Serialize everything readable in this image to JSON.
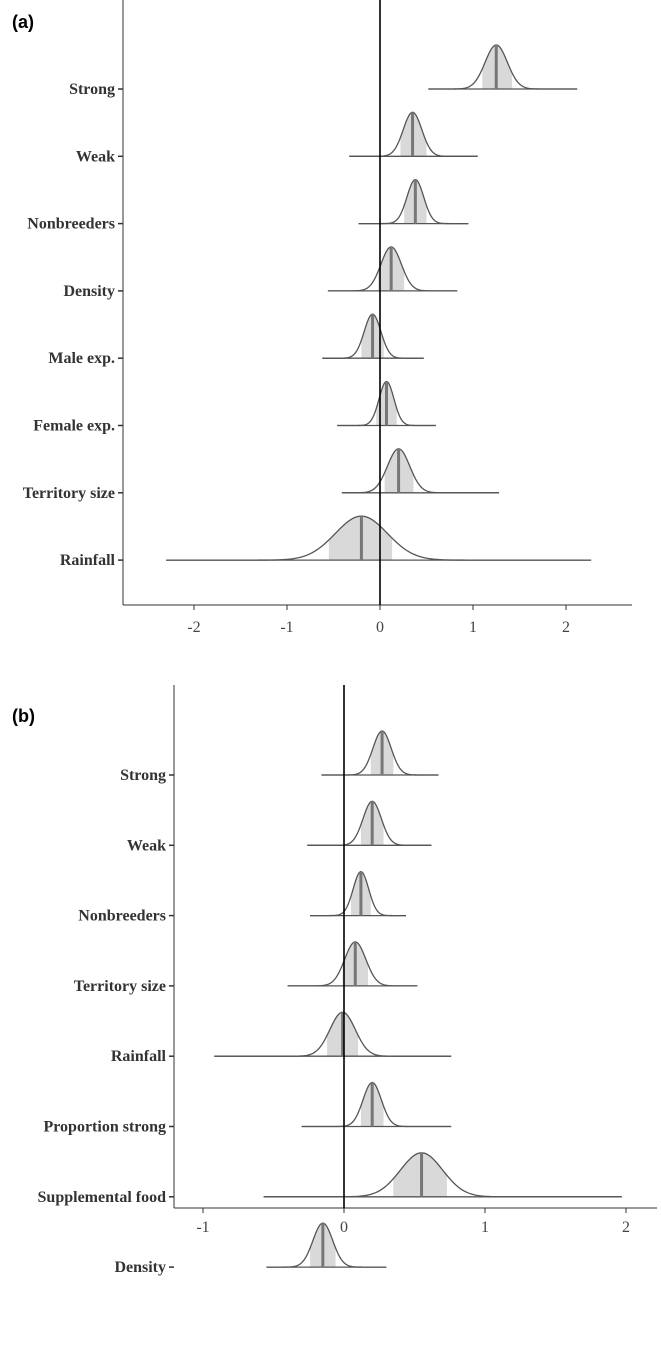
{
  "chart_data": [
    {
      "type": "ridge_interval",
      "panel_label": "(a)",
      "xlabel": "",
      "ylabel": "",
      "xlim": [
        -2.8,
        2.7
      ],
      "xticks": [
        -2,
        -1,
        0,
        1,
        2
      ],
      "xtick_labels": [
        "-2",
        "-1",
        "0",
        "1",
        "2"
      ],
      "reference_line": 0,
      "rows": [
        {
          "label": "Strong",
          "median": 1.25,
          "sd": 0.12,
          "inner": [
            1.1,
            1.42
          ],
          "outer": [
            0.52,
            2.12
          ]
        },
        {
          "label": "Weak",
          "median": 0.35,
          "sd": 0.1,
          "inner": [
            0.22,
            0.5
          ],
          "outer": [
            -0.33,
            1.05
          ]
        },
        {
          "label": "Nonbreeders",
          "median": 0.38,
          "sd": 0.09,
          "inner": [
            0.26,
            0.5
          ],
          "outer": [
            -0.23,
            0.95
          ]
        },
        {
          "label": "Density",
          "median": 0.12,
          "sd": 0.11,
          "inner": [
            -0.02,
            0.26
          ],
          "outer": [
            -0.56,
            0.83
          ]
        },
        {
          "label": "Male exp.",
          "median": -0.08,
          "sd": 0.09,
          "inner": [
            -0.2,
            0.04
          ],
          "outer": [
            -0.62,
            0.47
          ]
        },
        {
          "label": "Female exp.",
          "median": 0.07,
          "sd": 0.08,
          "inner": [
            -0.04,
            0.18
          ],
          "outer": [
            -0.46,
            0.6
          ]
        },
        {
          "label": "Territory size",
          "median": 0.2,
          "sd": 0.12,
          "inner": [
            0.05,
            0.36
          ],
          "outer": [
            -0.41,
            1.28
          ]
        },
        {
          "label": "Rainfall",
          "median": -0.2,
          "sd": 0.28,
          "inner": [
            -0.55,
            0.13
          ],
          "outer": [
            -2.3,
            2.27
          ]
        }
      ]
    },
    {
      "type": "ridge_interval",
      "panel_label": "(b)",
      "xlabel": "",
      "ylabel": "",
      "xlim": [
        -1.2,
        2.25
      ],
      "xticks": [
        -1,
        0,
        1,
        2
      ],
      "xtick_labels": [
        "-1",
        "0",
        "1",
        "2"
      ],
      "reference_line": 0,
      "rows": [
        {
          "label": "Strong",
          "median": 0.27,
          "sd": 0.065,
          "inner": [
            0.19,
            0.35
          ],
          "outer": [
            -0.16,
            0.67
          ]
        },
        {
          "label": "Weak",
          "median": 0.2,
          "sd": 0.065,
          "inner": [
            0.12,
            0.28
          ],
          "outer": [
            -0.26,
            0.62
          ]
        },
        {
          "label": "Nonbreeders",
          "median": 0.12,
          "sd": 0.055,
          "inner": [
            0.05,
            0.19
          ],
          "outer": [
            -0.24,
            0.44
          ]
        },
        {
          "label": "Territory size",
          "median": 0.08,
          "sd": 0.075,
          "inner": [
            -0.01,
            0.17
          ],
          "outer": [
            -0.4,
            0.52
          ]
        },
        {
          "label": "Rainfall",
          "median": -0.01,
          "sd": 0.09,
          "inner": [
            -0.12,
            0.1
          ],
          "outer": [
            -0.92,
            0.76
          ]
        },
        {
          "label": "Proportion strong",
          "median": 0.2,
          "sd": 0.065,
          "inner": [
            0.12,
            0.28
          ],
          "outer": [
            -0.3,
            0.76
          ]
        },
        {
          "label": "Supplemental food",
          "median": 0.55,
          "sd": 0.15,
          "inner": [
            0.35,
            0.73
          ],
          "outer": [
            -0.57,
            1.97
          ]
        },
        {
          "label": "Density",
          "median": -0.15,
          "sd": 0.07,
          "inner": [
            -0.24,
            -0.06
          ],
          "outer": [
            -0.55,
            0.3
          ]
        }
      ]
    }
  ]
}
